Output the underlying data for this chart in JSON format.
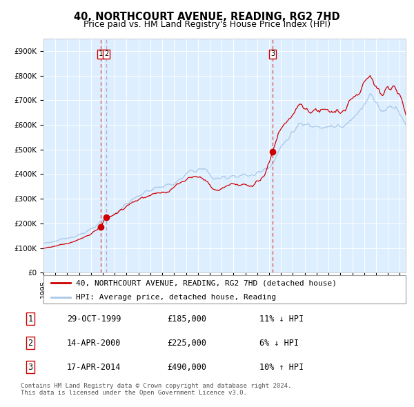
{
  "title": "40, NORTHCOURT AVENUE, READING, RG2 7HD",
  "subtitle": "Price paid vs. HM Land Registry's House Price Index (HPI)",
  "ylim": [
    0,
    950000
  ],
  "yticks": [
    0,
    100000,
    200000,
    300000,
    400000,
    500000,
    600000,
    700000,
    800000,
    900000
  ],
  "ytick_labels": [
    "£0",
    "£100K",
    "£200K",
    "£300K",
    "£400K",
    "£500K",
    "£600K",
    "£700K",
    "£800K",
    "£900K"
  ],
  "x_start_year": 1995,
  "x_end_year": 2025,
  "hpi_color": "#a8c8e8",
  "property_color": "#cc0000",
  "bg_color": "#ddeeff",
  "grid_color": "#c8d8e8",
  "sale_dates": [
    1999.83,
    2000.29,
    2014.29
  ],
  "sale_prices": [
    185000,
    225000,
    490000
  ],
  "sale_labels": [
    "1",
    "2",
    "3"
  ],
  "legend_line1": "40, NORTHCOURT AVENUE, READING, RG2 7HD (detached house)",
  "legend_line2": "HPI: Average price, detached house, Reading",
  "table_data": [
    [
      "1",
      "29-OCT-1999",
      "£185,000",
      "11% ↓ HPI"
    ],
    [
      "2",
      "14-APR-2000",
      "£225,000",
      "6% ↓ HPI"
    ],
    [
      "3",
      "17-APR-2014",
      "£490,000",
      "10% ↑ HPI"
    ]
  ],
  "footnote": "Contains HM Land Registry data © Crown copyright and database right 2024.\nThis data is licensed under the Open Government Licence v3.0.",
  "title_fontsize": 10.5,
  "subtitle_fontsize": 9,
  "tick_fontsize": 7.5,
  "legend_fontsize": 8,
  "table_fontsize": 8.5
}
